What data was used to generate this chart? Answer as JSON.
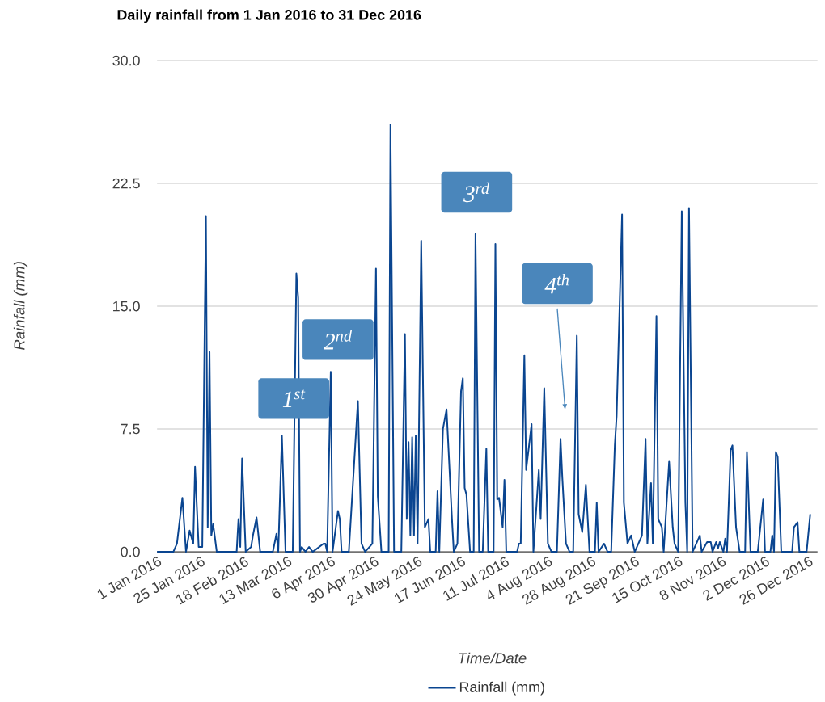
{
  "chart_data": {
    "type": "line",
    "title": "Daily rainfall from 1 Jan 2016 to 31 Dec 2016",
    "xlabel": "Time/Date",
    "ylabel": "Rainfall (mm)",
    "x": [
      "2016-01-01",
      "2016-01-10",
      "2016-01-12",
      "2016-01-15",
      "2016-01-17",
      "2016-01-19",
      "2016-01-21",
      "2016-01-22",
      "2016-01-24",
      "2016-01-26",
      "2016-01-28",
      "2016-01-29",
      "2016-01-30",
      "2016-01-31",
      "2016-02-01",
      "2016-02-03",
      "2016-02-14",
      "2016-02-15",
      "2016-02-16",
      "2016-02-17",
      "2016-02-19",
      "2016-02-22",
      "2016-02-23",
      "2016-02-25",
      "2016-02-27",
      "2016-03-05",
      "2016-03-07",
      "2016-03-08",
      "2016-03-10",
      "2016-03-12",
      "2016-03-16",
      "2016-03-18",
      "2016-03-19",
      "2016-03-20",
      "2016-03-21",
      "2016-03-23",
      "2016-03-25",
      "2016-03-27",
      "2016-04-02",
      "2016-04-03",
      "2016-04-04",
      "2016-04-06",
      "2016-04-07",
      "2016-04-10",
      "2016-04-11",
      "2016-04-12",
      "2016-04-16",
      "2016-04-21",
      "2016-04-23",
      "2016-04-25",
      "2016-04-29",
      "2016-05-01",
      "2016-05-02",
      "2016-05-04",
      "2016-05-08",
      "2016-05-09",
      "2016-05-11",
      "2016-05-15",
      "2016-05-17",
      "2016-05-18",
      "2016-05-19",
      "2016-05-20",
      "2016-05-21",
      "2016-05-22",
      "2016-05-23",
      "2016-05-24",
      "2016-05-26",
      "2016-05-28",
      "2016-05-30",
      "2016-05-31",
      "2016-06-03",
      "2016-06-04",
      "2016-06-05",
      "2016-06-07",
      "2016-06-09",
      "2016-06-12",
      "2016-06-13",
      "2016-06-15",
      "2016-06-17",
      "2016-06-18",
      "2016-06-19",
      "2016-06-20",
      "2016-06-22",
      "2016-06-24",
      "2016-06-25",
      "2016-06-27",
      "2016-06-29",
      "2016-07-01",
      "2016-07-02",
      "2016-07-05",
      "2016-07-06",
      "2016-07-07",
      "2016-07-08",
      "2016-07-10",
      "2016-07-11",
      "2016-07-12",
      "2016-07-18",
      "2016-07-19",
      "2016-07-20",
      "2016-07-22",
      "2016-07-23",
      "2016-07-26",
      "2016-07-27",
      "2016-07-30",
      "2016-07-31",
      "2016-08-02",
      "2016-08-04",
      "2016-08-06",
      "2016-08-09",
      "2016-08-11",
      "2016-08-12",
      "2016-08-14",
      "2016-08-16",
      "2016-08-18",
      "2016-08-20",
      "2016-08-21",
      "2016-08-23",
      "2016-08-25",
      "2016-08-27",
      "2016-08-30",
      "2016-08-31",
      "2016-09-01",
      "2016-09-04",
      "2016-09-06",
      "2016-09-08",
      "2016-09-10",
      "2016-09-11",
      "2016-09-14",
      "2016-09-15",
      "2016-09-17",
      "2016-09-19",
      "2016-09-21",
      "2016-09-25",
      "2016-09-27",
      "2016-09-28",
      "2016-09-30",
      "2016-10-01",
      "2016-10-03",
      "2016-10-04",
      "2016-10-06",
      "2016-10-07",
      "2016-10-10",
      "2016-10-12",
      "2016-10-13",
      "2016-10-15",
      "2016-10-17",
      "2016-10-19",
      "2016-10-20",
      "2016-10-21",
      "2016-10-23",
      "2016-10-27",
      "2016-10-28",
      "2016-10-31",
      "2016-11-02",
      "2016-11-03",
      "2016-11-05",
      "2016-11-06",
      "2016-11-07",
      "2016-11-09",
      "2016-11-10",
      "2016-11-11",
      "2016-11-13",
      "2016-11-14",
      "2016-11-16",
      "2016-11-18",
      "2016-11-21",
      "2016-11-22",
      "2016-11-24",
      "2016-11-28",
      "2016-12-01",
      "2016-12-02",
      "2016-12-05",
      "2016-12-06",
      "2016-12-07",
      "2016-12-08",
      "2016-12-09",
      "2016-12-11",
      "2016-12-17",
      "2016-12-18",
      "2016-12-20",
      "2016-12-21",
      "2016-12-25",
      "2016-12-27"
    ],
    "series": [
      {
        "name": "Rainfall (mm)",
        "color": "#0a4590",
        "values": [
          0,
          0,
          0.5,
          3.3,
          0,
          1.3,
          0.5,
          5.2,
          0.3,
          0.3,
          20.5,
          1.5,
          12.2,
          1.0,
          1.7,
          0,
          0,
          2.0,
          0.3,
          5.7,
          0,
          0.3,
          1.0,
          2.1,
          0,
          0,
          1.1,
          0,
          7.1,
          0,
          0,
          17.0,
          15.5,
          0,
          0.3,
          0,
          0.3,
          0,
          0.5,
          0.5,
          0,
          11.0,
          0,
          2.5,
          2.0,
          0,
          0,
          9.2,
          0.5,
          0,
          0.5,
          17.3,
          3.4,
          0,
          0,
          26.1,
          0,
          0,
          13.3,
          2,
          6.7,
          1,
          7.0,
          1,
          7.1,
          0.5,
          19.0,
          1.5,
          2.0,
          0,
          0,
          3.7,
          0,
          7.5,
          8.7,
          2,
          0,
          0.5,
          9.8,
          10.6,
          3.9,
          3.5,
          0,
          0,
          19.4,
          0,
          0,
          6.3,
          0,
          0,
          18.8,
          3.2,
          3.3,
          1.5,
          4.4,
          0,
          0,
          0.5,
          0.5,
          12.0,
          5.0,
          7.8,
          0,
          5.0,
          2,
          10.0,
          0.5,
          0,
          0,
          6.9,
          4.5,
          0.5,
          0,
          0,
          13.2,
          2.3,
          1.2,
          4.1,
          0,
          0,
          3.0,
          0,
          0.5,
          0,
          0,
          6.5,
          8.3,
          20.6,
          3,
          0.5,
          1.0,
          0,
          1.0,
          6.9,
          0.5,
          4.2,
          0.5,
          14.4,
          2.0,
          1.5,
          0,
          5.5,
          1.5,
          0.5,
          0,
          20.8,
          3,
          0,
          21.0,
          0,
          1.0,
          0,
          0.6,
          0.6,
          0,
          0.6,
          0.2,
          0.6,
          0,
          0.8,
          0,
          6.2,
          6.5,
          1.5,
          0,
          0,
          6.1,
          0,
          0,
          3.2,
          0,
          0,
          1.0,
          0,
          6.1,
          5.8,
          0,
          0,
          1.5,
          1.8,
          0,
          0,
          2.3
        ]
      }
    ],
    "xlim": [
      "2016-01-01",
      "2016-12-31"
    ],
    "xticks": [
      {
        "value": "2016-01-01",
        "label": "1 Jan 2016"
      },
      {
        "value": "2016-01-25",
        "label": "25 Jan 2016"
      },
      {
        "value": "2016-02-18",
        "label": "18 Feb 2016"
      },
      {
        "value": "2016-03-13",
        "label": "13 Mar 2016"
      },
      {
        "value": "2016-04-06",
        "label": "6 Apr 2016"
      },
      {
        "value": "2016-04-30",
        "label": "30 Apr 2016"
      },
      {
        "value": "2016-05-24",
        "label": "24 May 2016"
      },
      {
        "value": "2016-06-17",
        "label": "17 Jun 2016"
      },
      {
        "value": "2016-07-11",
        "label": "11 Jul 2016"
      },
      {
        "value": "2016-08-04",
        "label": "4 Aug 2016"
      },
      {
        "value": "2016-08-28",
        "label": "28 Aug 2016"
      },
      {
        "value": "2016-09-21",
        "label": "21 Sep 2016"
      },
      {
        "value": "2016-10-15",
        "label": "15 Oct 2016"
      },
      {
        "value": "2016-11-08",
        "label": "8 Nov 2016"
      },
      {
        "value": "2016-12-02",
        "label": "2 Dec 2016"
      },
      {
        "value": "2016-12-26",
        "label": "26 Dec 2016"
      }
    ],
    "ylim": [
      0,
      30
    ],
    "yticks": [
      {
        "value": 0,
        "label": "0.0"
      },
      7.5,
      {
        "value": 15,
        "label": "15.0"
      },
      22.5,
      {
        "value": 30,
        "label": "30.0"
      }
    ],
    "grid": "y",
    "legend": "bottom",
    "marker": "none",
    "line_style": "solid",
    "annotations": [
      "1$^{st}$",
      "2$^{nd}$",
      "3$^{rd}$",
      "4$^{th}$"
    ]
  }
}
